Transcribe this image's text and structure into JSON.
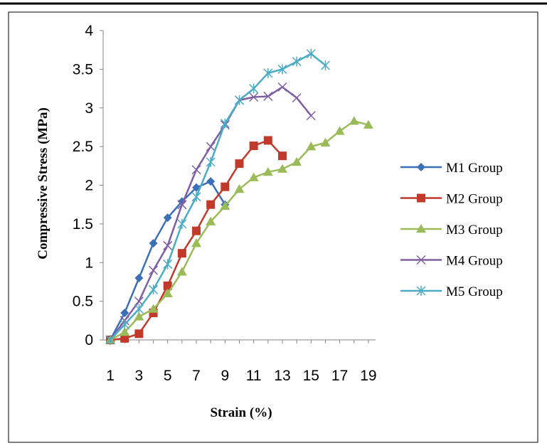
{
  "chart_data": {
    "type": "line",
    "xlabel": "Strain (%)",
    "ylabel": "Compressive Stress (MPa)",
    "xlim": [
      0.5,
      19.5
    ],
    "ylim": [
      0,
      4
    ],
    "x_tick_labels": [
      "1",
      "3",
      "5",
      "7",
      "9",
      "11",
      "13",
      "15",
      "17",
      "19"
    ],
    "y_tick_labels": [
      "0",
      "0.5",
      "1",
      "1.5",
      "2",
      "2.5",
      "3",
      "3.5",
      "4"
    ],
    "grid": false,
    "legend_position": "right",
    "series": [
      {
        "name": "M1 Group",
        "color": "#3b6fb6",
        "marker": "diamond",
        "x": [
          1,
          2,
          3,
          4,
          5,
          6,
          7,
          8,
          9
        ],
        "y": [
          0.0,
          0.35,
          0.8,
          1.25,
          1.58,
          1.79,
          1.97,
          2.05,
          1.75
        ]
      },
      {
        "name": "M2 Group",
        "color": "#c0392b",
        "marker": "square",
        "x": [
          1,
          2,
          3,
          4,
          5,
          6,
          7,
          8,
          9,
          10,
          11,
          12,
          13
        ],
        "y": [
          0.0,
          0.02,
          0.08,
          0.35,
          0.7,
          1.12,
          1.41,
          1.75,
          1.98,
          2.28,
          2.51,
          2.58,
          2.38
        ]
      },
      {
        "name": "M3 Group",
        "color": "#9bbb59",
        "marker": "triangle",
        "x": [
          1,
          2,
          3,
          4,
          5,
          6,
          7,
          8,
          9,
          10,
          11,
          12,
          13,
          14,
          15,
          16,
          17,
          18,
          19
        ],
        "y": [
          0.0,
          0.1,
          0.3,
          0.4,
          0.6,
          0.88,
          1.25,
          1.53,
          1.73,
          1.95,
          2.1,
          2.17,
          2.21,
          2.3,
          2.5,
          2.55,
          2.7,
          2.83,
          2.78
        ]
      },
      {
        "name": "M4 Group",
        "color": "#7f5fa3",
        "marker": "x",
        "x": [
          1,
          2,
          3,
          4,
          5,
          6,
          7,
          8,
          9,
          10,
          11,
          12,
          13,
          14,
          15
        ],
        "y": [
          0.0,
          0.25,
          0.5,
          0.9,
          1.22,
          1.75,
          2.2,
          2.5,
          2.78,
          3.1,
          3.14,
          3.15,
          3.27,
          3.13,
          2.9
        ]
      },
      {
        "name": "M5 Group",
        "color": "#4bacc6",
        "marker": "asterisk",
        "x": [
          1,
          2,
          3,
          4,
          5,
          6,
          7,
          8,
          9,
          10,
          11,
          12,
          13,
          14,
          15,
          16
        ],
        "y": [
          0.0,
          0.2,
          0.4,
          0.65,
          0.98,
          1.5,
          1.85,
          2.3,
          2.8,
          3.1,
          3.25,
          3.45,
          3.5,
          3.6,
          3.7,
          3.55
        ]
      }
    ]
  }
}
